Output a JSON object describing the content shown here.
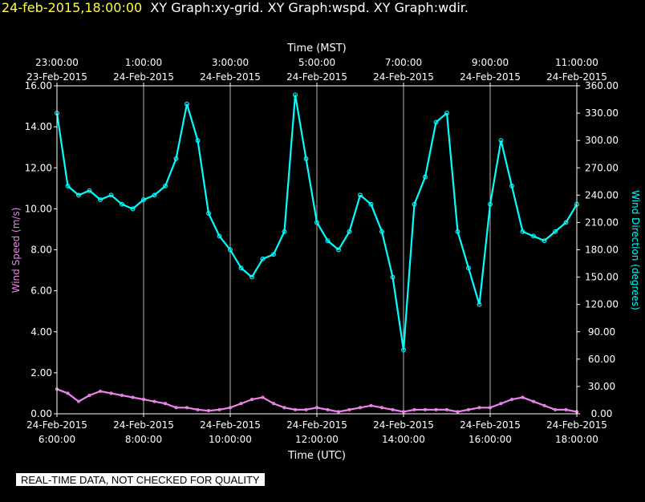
{
  "header": {
    "timestamp": "24-feb-2015,18:00:00",
    "graphs": "XY Graph:xy-grid.  XY Graph:wspd.  XY Graph:wdir."
  },
  "footer": {
    "quality_note": "REAL-TIME DATA, NOT CHECKED FOR QUALITY"
  },
  "colors": {
    "wind_speed": "#ee82ee",
    "wind_direction": "#00ffff",
    "axes": "#ffffff",
    "grid": "#ffffff",
    "header_timestamp": "#ffff44"
  },
  "chart_data": {
    "type": "scatter",
    "grid": true,
    "top_axis": {
      "title": "Time (MST)",
      "ticks": [
        {
          "time": "23:00:00",
          "date": "23-Feb-2015"
        },
        {
          "time": "1:00:00",
          "date": "24-Feb-2015"
        },
        {
          "time": "3:00:00",
          "date": "24-Feb-2015"
        },
        {
          "time": "5:00:00",
          "date": "24-Feb-2015"
        },
        {
          "time": "7:00:00",
          "date": "24-Feb-2015"
        },
        {
          "time": "9:00:00",
          "date": "24-Feb-2015"
        },
        {
          "time": "11:00:00",
          "date": "24-Feb-2015"
        }
      ]
    },
    "bottom_axis": {
      "title": "Time (UTC)",
      "ticks": [
        {
          "date": "24-Feb-2015",
          "time": "6:00:00"
        },
        {
          "date": "24-Feb-2015",
          "time": "8:00:00"
        },
        {
          "date": "24-Feb-2015",
          "time": "10:00:00"
        },
        {
          "date": "24-Feb-2015",
          "time": "12:00:00"
        },
        {
          "date": "24-Feb-2015",
          "time": "14:00:00"
        },
        {
          "date": "24-Feb-2015",
          "time": "16:00:00"
        },
        {
          "date": "24-Feb-2015",
          "time": "18:00:00"
        }
      ],
      "xlim": [
        "24-Feb-2015 6:00:00",
        "24-Feb-2015 18:00:00"
      ]
    },
    "left_axis": {
      "title": "Wind Speed (m/s)",
      "ylim": [
        0,
        16
      ],
      "ticks": [
        "0.00",
        "2.00",
        "4.00",
        "6.00",
        "8.00",
        "10.00",
        "12.00",
        "14.00",
        "16.00"
      ]
    },
    "right_axis": {
      "title": "Wind Direction (degrees)",
      "ylim": [
        0,
        360
      ],
      "ticks": [
        "0.00",
        "30.00",
        "60.00",
        "90.00",
        "120.00",
        "150.00",
        "180.00",
        "210.00",
        "240.00",
        "270.00",
        "300.00",
        "330.00",
        "360.00"
      ]
    },
    "series": [
      {
        "name": "Wind Speed (m/s)",
        "axis": "left",
        "x": [
          "6:00",
          "6:15",
          "6:30",
          "6:45",
          "7:00",
          "7:15",
          "7:30",
          "7:45",
          "8:00",
          "8:15",
          "8:30",
          "8:45",
          "9:00",
          "9:15",
          "9:30",
          "9:45",
          "10:00",
          "10:15",
          "10:30",
          "10:45",
          "11:00",
          "11:15",
          "11:30",
          "11:45",
          "12:00",
          "12:15",
          "12:30",
          "12:45",
          "13:00",
          "13:15",
          "13:30",
          "13:45",
          "14:00",
          "14:15",
          "14:30",
          "14:45",
          "15:00",
          "15:15",
          "15:30",
          "15:45",
          "16:00",
          "16:15",
          "16:30",
          "16:45",
          "17:00",
          "17:15",
          "17:30",
          "17:45",
          "18:00"
        ],
        "values": [
          1.2,
          1.0,
          0.6,
          0.9,
          1.1,
          1.0,
          0.9,
          0.8,
          0.7,
          0.6,
          0.5,
          0.3,
          0.3,
          0.2,
          0.15,
          0.2,
          0.3,
          0.5,
          0.7,
          0.8,
          0.5,
          0.3,
          0.2,
          0.2,
          0.3,
          0.2,
          0.1,
          0.2,
          0.3,
          0.4,
          0.3,
          0.2,
          0.1,
          0.2,
          0.2,
          0.2,
          0.2,
          0.1,
          0.2,
          0.3,
          0.3,
          0.5,
          0.7,
          0.8,
          0.6,
          0.4,
          0.2,
          0.2,
          0.1
        ]
      },
      {
        "name": "Wind Direction (degrees)",
        "axis": "right",
        "x": [
          "6:00",
          "6:15",
          "6:30",
          "6:45",
          "7:00",
          "7:15",
          "7:30",
          "7:45",
          "8:00",
          "8:15",
          "8:30",
          "8:45",
          "9:00",
          "9:15",
          "9:30",
          "9:45",
          "10:00",
          "10:15",
          "10:30",
          "10:45",
          "11:00",
          "11:15",
          "11:30",
          "11:45",
          "12:00",
          "12:15",
          "12:30",
          "12:45",
          "13:00",
          "13:15",
          "13:30",
          "13:45",
          "14:00",
          "14:15",
          "14:30",
          "14:45",
          "15:00",
          "15:15",
          "15:30",
          "15:45",
          "16:00",
          "16:15",
          "16:30",
          "16:45",
          "17:00",
          "17:15",
          "17:30",
          "17:45",
          "18:00"
        ],
        "values": [
          330,
          250,
          240,
          245,
          235,
          240,
          230,
          225,
          235,
          240,
          250,
          280,
          340,
          300,
          220,
          195,
          180,
          160,
          150,
          170,
          175,
          200,
          350,
          280,
          210,
          190,
          180,
          200,
          240,
          230,
          200,
          150,
          70,
          230,
          260,
          320,
          330,
          200,
          160,
          120,
          230,
          300,
          250,
          200,
          195,
          190,
          200,
          210,
          230
        ]
      }
    ]
  }
}
